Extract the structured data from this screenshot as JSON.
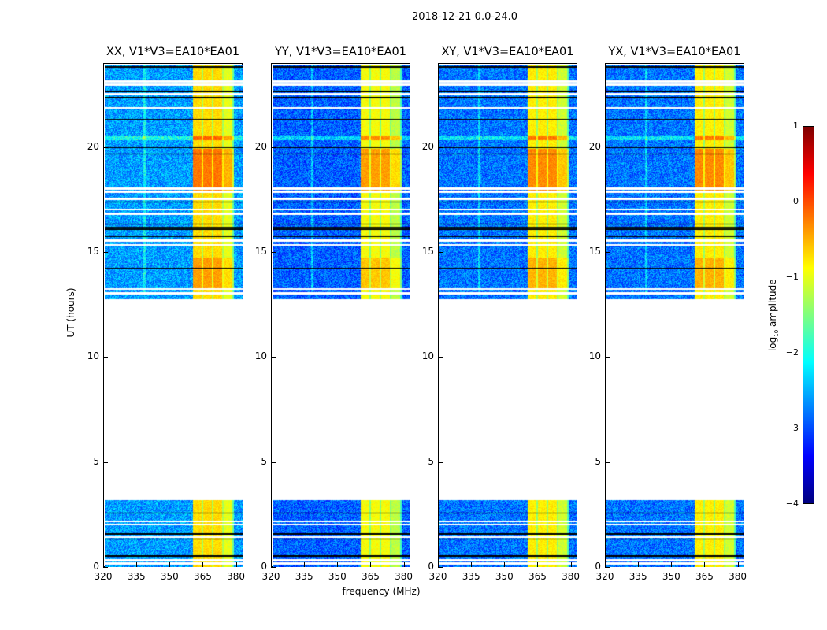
{
  "title": "2018-12-21 0.0-24.0",
  "chart_data": {
    "type": "heatmap",
    "title": "2018-12-21 0.0-24.0",
    "xlabel": "frequency (MHz)",
    "ylabel": "UT (hours)",
    "xlim": [
      320,
      383
    ],
    "ylim": [
      0,
      24
    ],
    "xticks": [
      "320",
      "335",
      "350",
      "365",
      "380"
    ],
    "xtick_values": [
      320,
      335,
      350,
      365,
      380
    ],
    "yticks": [
      "0",
      "5",
      "10",
      "15",
      "20"
    ],
    "ytick_values": [
      0,
      5,
      10,
      15,
      20
    ],
    "panels": [
      {
        "title": "XX, V1*V3=EA10*EA01",
        "band_level": -0.7,
        "background_level": -2.6
      },
      {
        "title": "YY, V1*V3=EA10*EA01",
        "band_level": -0.9,
        "background_level": -2.9
      },
      {
        "title": "XY, V1*V3=EA10*EA01",
        "band_level": -0.8,
        "background_level": -2.8
      },
      {
        "title": "YX, V1*V3=EA10*EA01",
        "band_level": -0.8,
        "background_level": -2.8
      }
    ],
    "data_time_ranges_hours": [
      [
        0,
        3.2
      ],
      [
        12.8,
        24
      ]
    ],
    "rfi_band_mhz": [
      360,
      379
    ],
    "colorbar": {
      "label_prefix": "log",
      "label_sub": "10",
      "label_suffix": " amplitude",
      "range": [
        -4,
        1
      ],
      "ticks": [
        "1",
        "0",
        "−1",
        "−2",
        "−3",
        "−4"
      ],
      "tick_values": [
        1,
        0,
        -1,
        -2,
        -3,
        -4
      ],
      "colormap": "jet"
    }
  }
}
